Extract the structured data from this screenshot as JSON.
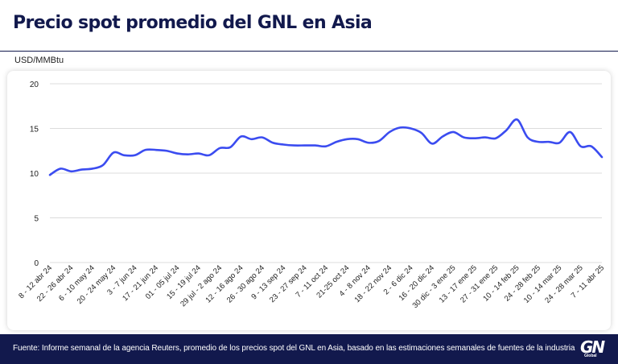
{
  "title": "Precio spot promedio del GNL en Asia",
  "footer": {
    "source": "Fuente: Informe semanal de la agencia Reuters, promedio de los precios spot del GNL en Asia, basado en las estimaciones semanales de fuentes de la industria",
    "logo_mark": "GN",
    "logo_sub": "Global"
  },
  "colors": {
    "navy": "#12194d",
    "line": "#3b4cf0",
    "grid": "#dcdcdc"
  },
  "chart_data": {
    "type": "line",
    "ylabel": "USD/MMBtu",
    "ylim": [
      0,
      20
    ],
    "yticks": [
      0,
      5,
      10,
      15,
      20
    ],
    "grid": true,
    "categories": [
      "8 - 12 abr 24",
      "22 - 26 abr 24",
      "6 - 10 may 24",
      "20 - 24 may 24",
      "3 - 7 jun 24",
      "17 - 21 jun 24",
      "01 - 05 jul 24",
      "15 - 19 jul 24",
      "29 jul - 2 ago 24",
      "12 - 16 ago 24",
      "26 - 30 ago 24",
      "9 - 13 sep 24",
      "23 - 27 sep 24",
      "7 - 11 oct 24",
      "21-25 oct 24",
      "4 - 8 nov 24",
      "18 - 22 nov 24",
      "2 - 6 dic 24",
      "16 - 20 dic 24",
      "30 dic - 3 ene 25",
      "13 - 17 ene 25",
      "27 - 31 ene 25",
      "10 - 14 feb 25",
      "24 - 28 feb 25",
      "10 - 14 mar 25",
      "24 - 28 mar 25",
      "7 - 11 abr 25"
    ],
    "x": [
      "8 - 12 abr 24",
      "15 - 19 abr 24",
      "22 - 26 abr 24",
      "29 abr - 3 may 24",
      "6 - 10 may 24",
      "13 - 17 may 24",
      "20 - 24 may 24",
      "27 - 31 may 24",
      "3 - 7 jun 24",
      "10 - 14 jun 24",
      "17 - 21 jun 24",
      "24 - 28 jun 24",
      "01 - 05 jul 24",
      "8 - 12 jul 24",
      "15 - 19 jul 24",
      "22 - 26 jul 24",
      "29 jul - 2 ago 24",
      "5 - 9 ago 24",
      "12 - 16 ago 24",
      "19 - 23 ago 24",
      "26 - 30 ago 24",
      "2 - 6 sep 24",
      "9 - 13 sep 24",
      "16 - 20 sep 24",
      "23 - 27 sep 24",
      "30 sep - 4 oct 24",
      "7 - 11 oct 24",
      "14 - 18 oct 24",
      "21-25 oct 24",
      "28 oct - 1 nov 24",
      "4 - 8 nov 24",
      "11 - 15 nov 24",
      "18 - 22 nov 24",
      "25 - 29 nov 24",
      "2 - 6 dic 24",
      "9 - 13 dic 24",
      "16 - 20 dic 24",
      "23 - 27 dic 24",
      "30 dic - 3 ene 25",
      "6 - 10 ene 25",
      "13 - 17 ene 25",
      "20 - 24 ene 25",
      "27 - 31 ene 25",
      "3 - 7 feb 25",
      "10 - 14 feb 25",
      "17 - 21 feb 25",
      "24 - 28 feb 25",
      "3 - 7 mar 25",
      "10 - 14 mar 25",
      "17 - 21 mar 25",
      "24 - 28 mar 25",
      "31 mar - 4 abr 25",
      "7 - 11 abr 25"
    ],
    "series": [
      {
        "values": [
          9.8,
          10.5,
          10.2,
          10.4,
          10.5,
          10.9,
          12.3,
          12.0,
          12.0,
          12.6,
          12.6,
          12.5,
          12.2,
          12.1,
          12.2,
          12.0,
          12.8,
          12.9,
          14.1,
          13.8,
          14.0,
          13.4,
          13.2,
          13.1,
          13.1,
          13.1,
          13.0,
          13.5,
          13.8,
          13.8,
          13.4,
          13.6,
          14.6,
          15.1,
          15.0,
          14.5,
          13.3,
          14.1,
          14.6,
          14.0,
          13.9,
          14.0,
          13.9,
          14.8,
          16.0,
          14.0,
          13.5,
          13.5,
          13.4,
          14.6,
          13.0,
          13.0,
          11.8
        ]
      }
    ]
  }
}
